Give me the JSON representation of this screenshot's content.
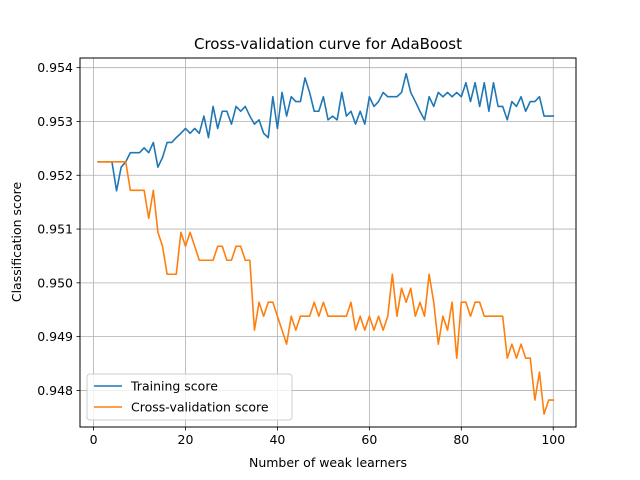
{
  "chart_data": {
    "type": "line",
    "title": "Cross-validation curve for AdaBoost",
    "xlabel": "Number of weak learners",
    "ylabel": "Classification score",
    "xlim": [
      -2.95,
      104.95
    ],
    "ylim": [
      0.94732,
      0.95418
    ],
    "xticks": [
      0,
      20,
      40,
      60,
      80,
      100
    ],
    "yticks": [
      0.948,
      0.949,
      0.95,
      0.951,
      0.952,
      0.953,
      0.954
    ],
    "xtick_labels": [
      "0",
      "20",
      "40",
      "60",
      "80",
      "100"
    ],
    "ytick_labels": [
      "0.948",
      "0.949",
      "0.950",
      "0.951",
      "0.952",
      "0.953",
      "0.954"
    ],
    "grid": true,
    "legend_position": "lower-left",
    "x": [
      1,
      2,
      3,
      4,
      5,
      6,
      7,
      8,
      9,
      10,
      11,
      12,
      13,
      14,
      15,
      16,
      17,
      18,
      19,
      20,
      21,
      22,
      23,
      24,
      25,
      26,
      27,
      28,
      29,
      30,
      31,
      32,
      33,
      34,
      35,
      36,
      37,
      38,
      39,
      40,
      41,
      42,
      43,
      44,
      45,
      46,
      47,
      48,
      49,
      50,
      51,
      52,
      53,
      54,
      55,
      56,
      57,
      58,
      59,
      60,
      61,
      62,
      63,
      64,
      65,
      66,
      67,
      68,
      69,
      70,
      71,
      72,
      73,
      74,
      75,
      76,
      77,
      78,
      79,
      80,
      81,
      82,
      83,
      84,
      85,
      86,
      87,
      88,
      89,
      90,
      91,
      92,
      93,
      94,
      95,
      96,
      97,
      98,
      99,
      100
    ],
    "series": [
      {
        "name": "Training score",
        "color": "#1f77b4",
        "values": [
          0.95225,
          0.95225,
          0.95225,
          0.95225,
          0.95171,
          0.95215,
          0.95225,
          0.95242,
          0.95242,
          0.95242,
          0.95251,
          0.95242,
          0.95261,
          0.95215,
          0.95233,
          0.95261,
          0.95261,
          0.9527,
          0.95278,
          0.95287,
          0.95278,
          0.95287,
          0.95278,
          0.9531,
          0.9527,
          0.95328,
          0.95287,
          0.95319,
          0.95319,
          0.95295,
          0.95328,
          0.95319,
          0.95328,
          0.9531,
          0.95295,
          0.95303,
          0.95278,
          0.9527,
          0.95346,
          0.95287,
          0.95354,
          0.9531,
          0.95346,
          0.95337,
          0.95337,
          0.95381,
          0.95354,
          0.95319,
          0.95319,
          0.95346,
          0.95303,
          0.9531,
          0.95303,
          0.95354,
          0.9531,
          0.95319,
          0.95295,
          0.95319,
          0.95295,
          0.95346,
          0.95328,
          0.95337,
          0.95354,
          0.95346,
          0.95346,
          0.95346,
          0.95354,
          0.95389,
          0.95354,
          0.95337,
          0.95319,
          0.95303,
          0.95346,
          0.95328,
          0.95354,
          0.95346,
          0.95354,
          0.95346,
          0.95354,
          0.95346,
          0.95372,
          0.95337,
          0.95372,
          0.95328,
          0.95372,
          0.95319,
          0.95372,
          0.95328,
          0.95328,
          0.95303,
          0.95337,
          0.95328,
          0.95346,
          0.95319,
          0.95337,
          0.95337,
          0.95346,
          0.9531,
          0.9531,
          0.9531
        ]
      },
      {
        "name": "Cross-validation score",
        "color": "#ff7f0e",
        "values": [
          0.95225,
          0.95225,
          0.95225,
          0.95225,
          0.95225,
          0.95225,
          0.95225,
          0.95172,
          0.95172,
          0.95172,
          0.95172,
          0.9512,
          0.95172,
          0.95094,
          0.95068,
          0.95016,
          0.95016,
          0.95016,
          0.95094,
          0.95068,
          0.95094,
          0.95068,
          0.95042,
          0.95042,
          0.95042,
          0.95042,
          0.95068,
          0.95068,
          0.95042,
          0.95042,
          0.95068,
          0.95068,
          0.95042,
          0.95042,
          0.94912,
          0.94964,
          0.94938,
          0.94964,
          0.94964,
          0.94938,
          0.94912,
          0.94886,
          0.94938,
          0.94912,
          0.94938,
          0.94938,
          0.94938,
          0.94964,
          0.94938,
          0.94964,
          0.94938,
          0.94938,
          0.94938,
          0.94938,
          0.94938,
          0.94964,
          0.94912,
          0.94938,
          0.94912,
          0.94938,
          0.94912,
          0.94938,
          0.94912,
          0.94938,
          0.95016,
          0.94938,
          0.9499,
          0.94964,
          0.9499,
          0.94938,
          0.94964,
          0.94938,
          0.95016,
          0.94964,
          0.94886,
          0.94938,
          0.94912,
          0.94964,
          0.9486,
          0.94964,
          0.94964,
          0.94938,
          0.94964,
          0.94964,
          0.94938,
          0.94938,
          0.94938,
          0.94938,
          0.94938,
          0.9486,
          0.94886,
          0.9486,
          0.94886,
          0.9486,
          0.9486,
          0.94782,
          0.94834,
          0.94756,
          0.94782,
          0.94782
        ]
      }
    ]
  }
}
